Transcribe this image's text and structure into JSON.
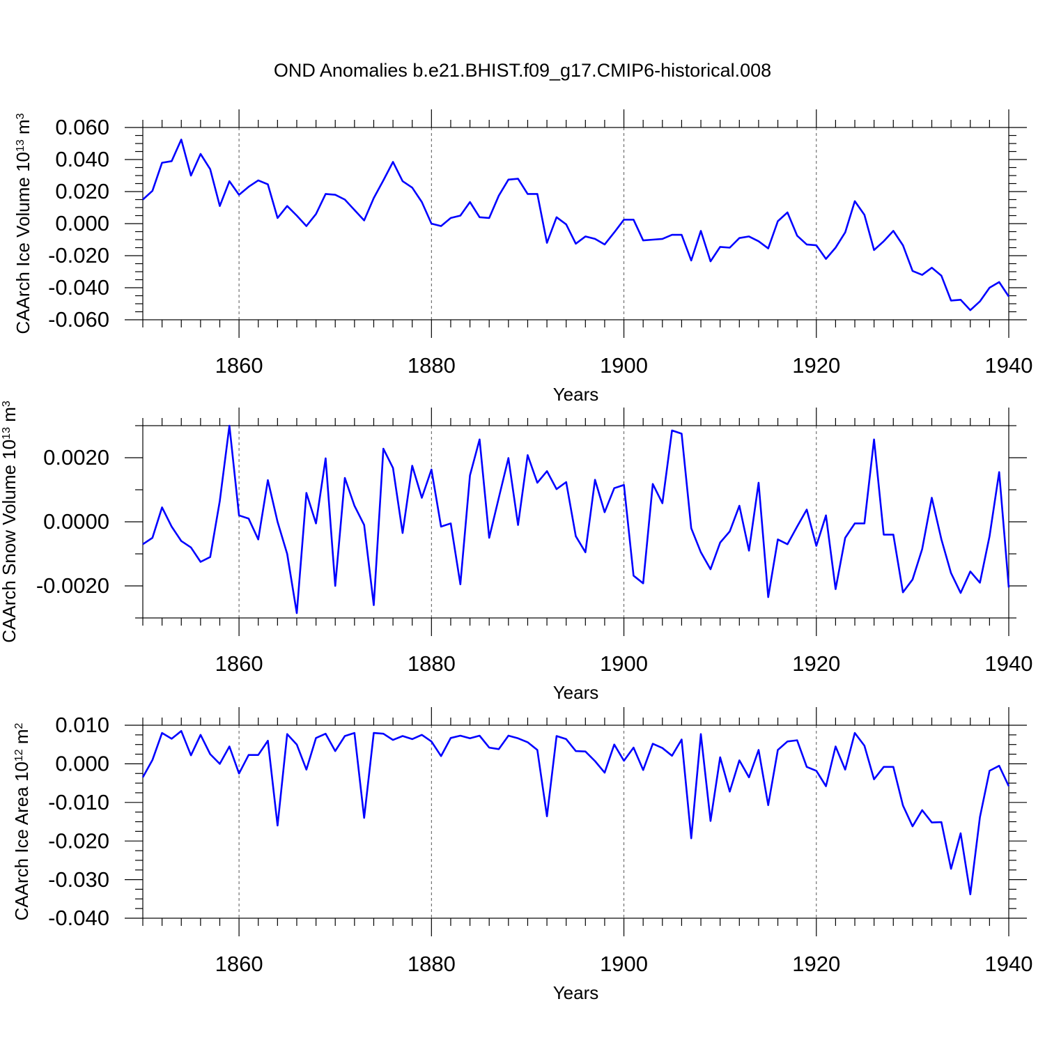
{
  "title": "OND Anomalies b.e21.BHIST.f09_g17.CMIP6-historical.008",
  "colors": {
    "series": "#0000ff",
    "axis": "#000000",
    "grid": "#555555"
  },
  "chart_data": [
    {
      "type": "line",
      "ylabel": {
        "main": "CAArch Ice Volume 10",
        "exp": "13",
        "unit": " m",
        "unit_exp": "3"
      },
      "xlabel": "Years",
      "xlim": [
        1850,
        1940
      ],
      "ylim": [
        -0.06,
        0.06
      ],
      "xticks": [
        1860,
        1880,
        1900,
        1920,
        1940
      ],
      "yticks": [
        -0.06,
        -0.04,
        -0.02,
        0,
        0.02,
        0.04,
        0.06
      ],
      "ytick_labels": [
        "-0.060",
        "-0.040",
        "-0.020",
        "0.000",
        "0.020",
        "0.040",
        "0.060"
      ],
      "y_minor_step": 0.005,
      "x": [
        1850,
        1851,
        1852,
        1853,
        1854,
        1855,
        1856,
        1857,
        1858,
        1859,
        1860,
        1861,
        1862,
        1863,
        1864,
        1865,
        1866,
        1867,
        1868,
        1869,
        1870,
        1871,
        1872,
        1873,
        1874,
        1875,
        1876,
        1877,
        1878,
        1879,
        1880,
        1881,
        1882,
        1883,
        1884,
        1885,
        1886,
        1887,
        1888,
        1889,
        1890,
        1891,
        1892,
        1893,
        1894,
        1895,
        1896,
        1897,
        1898,
        1899,
        1900,
        1901,
        1902,
        1903,
        1904,
        1905,
        1906,
        1907,
        1908,
        1909,
        1910,
        1911,
        1912,
        1913,
        1914,
        1915,
        1916,
        1917,
        1918,
        1919,
        1920,
        1921,
        1922,
        1923,
        1924,
        1925,
        1926,
        1927,
        1928,
        1929,
        1930,
        1931,
        1932,
        1933,
        1934,
        1935,
        1936,
        1937,
        1938,
        1939,
        1940
      ],
      "values": [
        0.015,
        0.0205,
        0.038,
        0.039,
        0.0525,
        0.03,
        0.0435,
        0.034,
        0.011,
        0.0265,
        0.018,
        0.023,
        0.027,
        0.0245,
        0.0035,
        0.011,
        0.005,
        -0.0015,
        0.006,
        0.0185,
        0.018,
        0.015,
        0.0085,
        0.002,
        0.016,
        0.027,
        0.0385,
        0.0265,
        0.0225,
        0.0135,
        0.0,
        -0.0015,
        0.0035,
        0.005,
        0.0135,
        0.004,
        0.0035,
        0.0175,
        0.0275,
        0.028,
        0.0185,
        0.0185,
        -0.012,
        0.004,
        -0.0005,
        -0.0125,
        -0.008,
        -0.0095,
        -0.013,
        -0.0055,
        0.0025,
        0.0025,
        -0.0105,
        -0.01,
        -0.0095,
        -0.007,
        -0.007,
        -0.023,
        -0.0045,
        -0.0235,
        -0.0145,
        -0.015,
        -0.009,
        -0.008,
        -0.011,
        -0.0155,
        0.0015,
        0.007,
        -0.0075,
        -0.013,
        -0.0135,
        -0.022,
        -0.015,
        -0.0055,
        0.014,
        0.0055,
        -0.0165,
        -0.011,
        -0.0045,
        -0.0135,
        -0.0295,
        -0.032,
        -0.0275,
        -0.0325,
        -0.048,
        -0.0475,
        -0.054,
        -0.0485,
        -0.04,
        -0.0365,
        -0.0455
      ]
    },
    {
      "type": "line",
      "ylabel": {
        "main": "CAArch Snow Volume 10",
        "exp": "13",
        "unit": " m",
        "unit_exp": "3"
      },
      "xlabel": "Years",
      "xlim": [
        1850,
        1940
      ],
      "ylim": [
        -0.003,
        0.003
      ],
      "xticks": [
        1860,
        1880,
        1900,
        1920,
        1940
      ],
      "yticks": [
        -0.002,
        0,
        0.002
      ],
      "ytick_labels": [
        "-0.0020",
        "0.0000",
        "0.0020"
      ],
      "y_minor_step": 0.001,
      "x": [
        1850,
        1851,
        1852,
        1853,
        1854,
        1855,
        1856,
        1857,
        1858,
        1859,
        1860,
        1861,
        1862,
        1863,
        1864,
        1865,
        1866,
        1867,
        1868,
        1869,
        1870,
        1871,
        1872,
        1873,
        1874,
        1875,
        1876,
        1877,
        1878,
        1879,
        1880,
        1881,
        1882,
        1883,
        1884,
        1885,
        1886,
        1887,
        1888,
        1889,
        1890,
        1891,
        1892,
        1893,
        1894,
        1895,
        1896,
        1897,
        1898,
        1899,
        1900,
        1901,
        1902,
        1903,
        1904,
        1905,
        1906,
        1907,
        1908,
        1909,
        1910,
        1911,
        1912,
        1913,
        1914,
        1915,
        1916,
        1917,
        1918,
        1919,
        1920,
        1921,
        1922,
        1923,
        1924,
        1925,
        1926,
        1927,
        1928,
        1929,
        1930,
        1931,
        1932,
        1933,
        1934,
        1935,
        1936,
        1937,
        1938,
        1939,
        1940
      ],
      "values": [
        -0.0007,
        -0.0005,
        0.00045,
        -0.00015,
        -0.0006,
        -0.0008,
        -0.00125,
        -0.0011,
        0.00065,
        0.003,
        0.0002,
        0.0001,
        -0.00055,
        0.0013,
        0.0,
        -0.001,
        -0.00285,
        0.0009,
        -5e-05,
        0.00198,
        -0.002,
        0.00137,
        0.0005,
        -0.0001,
        -0.0026,
        0.00228,
        0.00168,
        -0.00035,
        0.00175,
        0.00075,
        0.00163,
        -0.00015,
        -5e-05,
        -0.00195,
        0.00145,
        0.00257,
        -0.0005,
        0.00075,
        0.00199,
        -0.0001,
        0.00208,
        0.00122,
        0.00158,
        0.00102,
        0.00124,
        -0.00045,
        -0.00095,
        0.00131,
        0.0003,
        0.00105,
        0.00115,
        -0.00168,
        -0.00192,
        0.00118,
        0.00058,
        0.00285,
        0.00275,
        -0.0002,
        -0.00095,
        -0.00148,
        -0.00065,
        -0.0003,
        0.0005,
        -0.0009,
        0.00122,
        -0.00235,
        -0.00055,
        -0.0007,
        -0.00015,
        0.00038,
        -0.00075,
        0.0002,
        -0.0021,
        -0.0005,
        -5e-05,
        -5e-05,
        0.00257,
        -0.0004,
        -0.0004,
        -0.0022,
        -0.0018,
        -0.00085,
        0.00075,
        -0.00055,
        -0.0016,
        -0.00222,
        -0.00155,
        -0.0019,
        -0.00045,
        0.00155,
        -0.00205
      ]
    },
    {
      "type": "line",
      "ylabel": {
        "main": "CAArch Ice Area 10",
        "exp": "12",
        "unit": " m",
        "unit_exp": "2"
      },
      "xlabel": "Years",
      "xlim": [
        1850,
        1940
      ],
      "ylim": [
        -0.04,
        0.01
      ],
      "xticks": [
        1860,
        1880,
        1900,
        1920,
        1940
      ],
      "yticks": [
        -0.04,
        -0.03,
        -0.02,
        -0.01,
        0,
        0.01
      ],
      "ytick_labels": [
        "-0.040",
        "-0.030",
        "-0.020",
        "-0.010",
        "0.000",
        "0.010"
      ],
      "y_minor_step": 0.0025,
      "x": [
        1850,
        1851,
        1852,
        1853,
        1854,
        1855,
        1856,
        1857,
        1858,
        1859,
        1860,
        1861,
        1862,
        1863,
        1864,
        1865,
        1866,
        1867,
        1868,
        1869,
        1870,
        1871,
        1872,
        1873,
        1874,
        1875,
        1876,
        1877,
        1878,
        1879,
        1880,
        1881,
        1882,
        1883,
        1884,
        1885,
        1886,
        1887,
        1888,
        1889,
        1890,
        1891,
        1892,
        1893,
        1894,
        1895,
        1896,
        1897,
        1898,
        1899,
        1900,
        1901,
        1902,
        1903,
        1904,
        1905,
        1906,
        1907,
        1908,
        1909,
        1910,
        1911,
        1912,
        1913,
        1914,
        1915,
        1916,
        1917,
        1918,
        1919,
        1920,
        1921,
        1922,
        1923,
        1924,
        1925,
        1926,
        1927,
        1928,
        1929,
        1930,
        1931,
        1932,
        1933,
        1934,
        1935,
        1936,
        1937,
        1938,
        1939,
        1940
      ],
      "values": [
        -0.0035,
        0.001,
        0.008,
        0.0065,
        0.0085,
        0.0022,
        0.0075,
        0.0025,
        0.0,
        0.0045,
        -0.0025,
        0.0023,
        0.0023,
        0.006,
        -0.016,
        0.0077,
        0.005,
        -0.0015,
        0.0067,
        0.0078,
        0.0033,
        0.0072,
        0.008,
        -0.014,
        0.008,
        0.0078,
        0.0062,
        0.0072,
        0.0064,
        0.0075,
        0.0058,
        0.002,
        0.0067,
        0.0073,
        0.0066,
        0.0073,
        0.0042,
        0.0038,
        0.0073,
        0.0066,
        0.0056,
        0.0036,
        -0.0136,
        0.0072,
        0.0064,
        0.0033,
        0.0032,
        0.0007,
        -0.0023,
        0.005,
        0.0008,
        0.0042,
        -0.0016,
        0.0052,
        0.0041,
        0.0021,
        0.0063,
        -0.0193,
        0.0077,
        -0.0148,
        0.0017,
        -0.0072,
        0.0009,
        -0.0035,
        0.0036,
        -0.0107,
        0.0036,
        0.0058,
        0.0061,
        -0.0008,
        -0.0018,
        -0.0058,
        0.0045,
        -0.0015,
        0.008,
        0.0047,
        -0.004,
        -0.0008,
        -0.0008,
        -0.0108,
        -0.0162,
        -0.012,
        -0.0152,
        -0.0151,
        -0.0272,
        -0.018,
        -0.0338,
        -0.0138,
        -0.0018,
        -0.0005,
        -0.0058
      ]
    }
  ]
}
